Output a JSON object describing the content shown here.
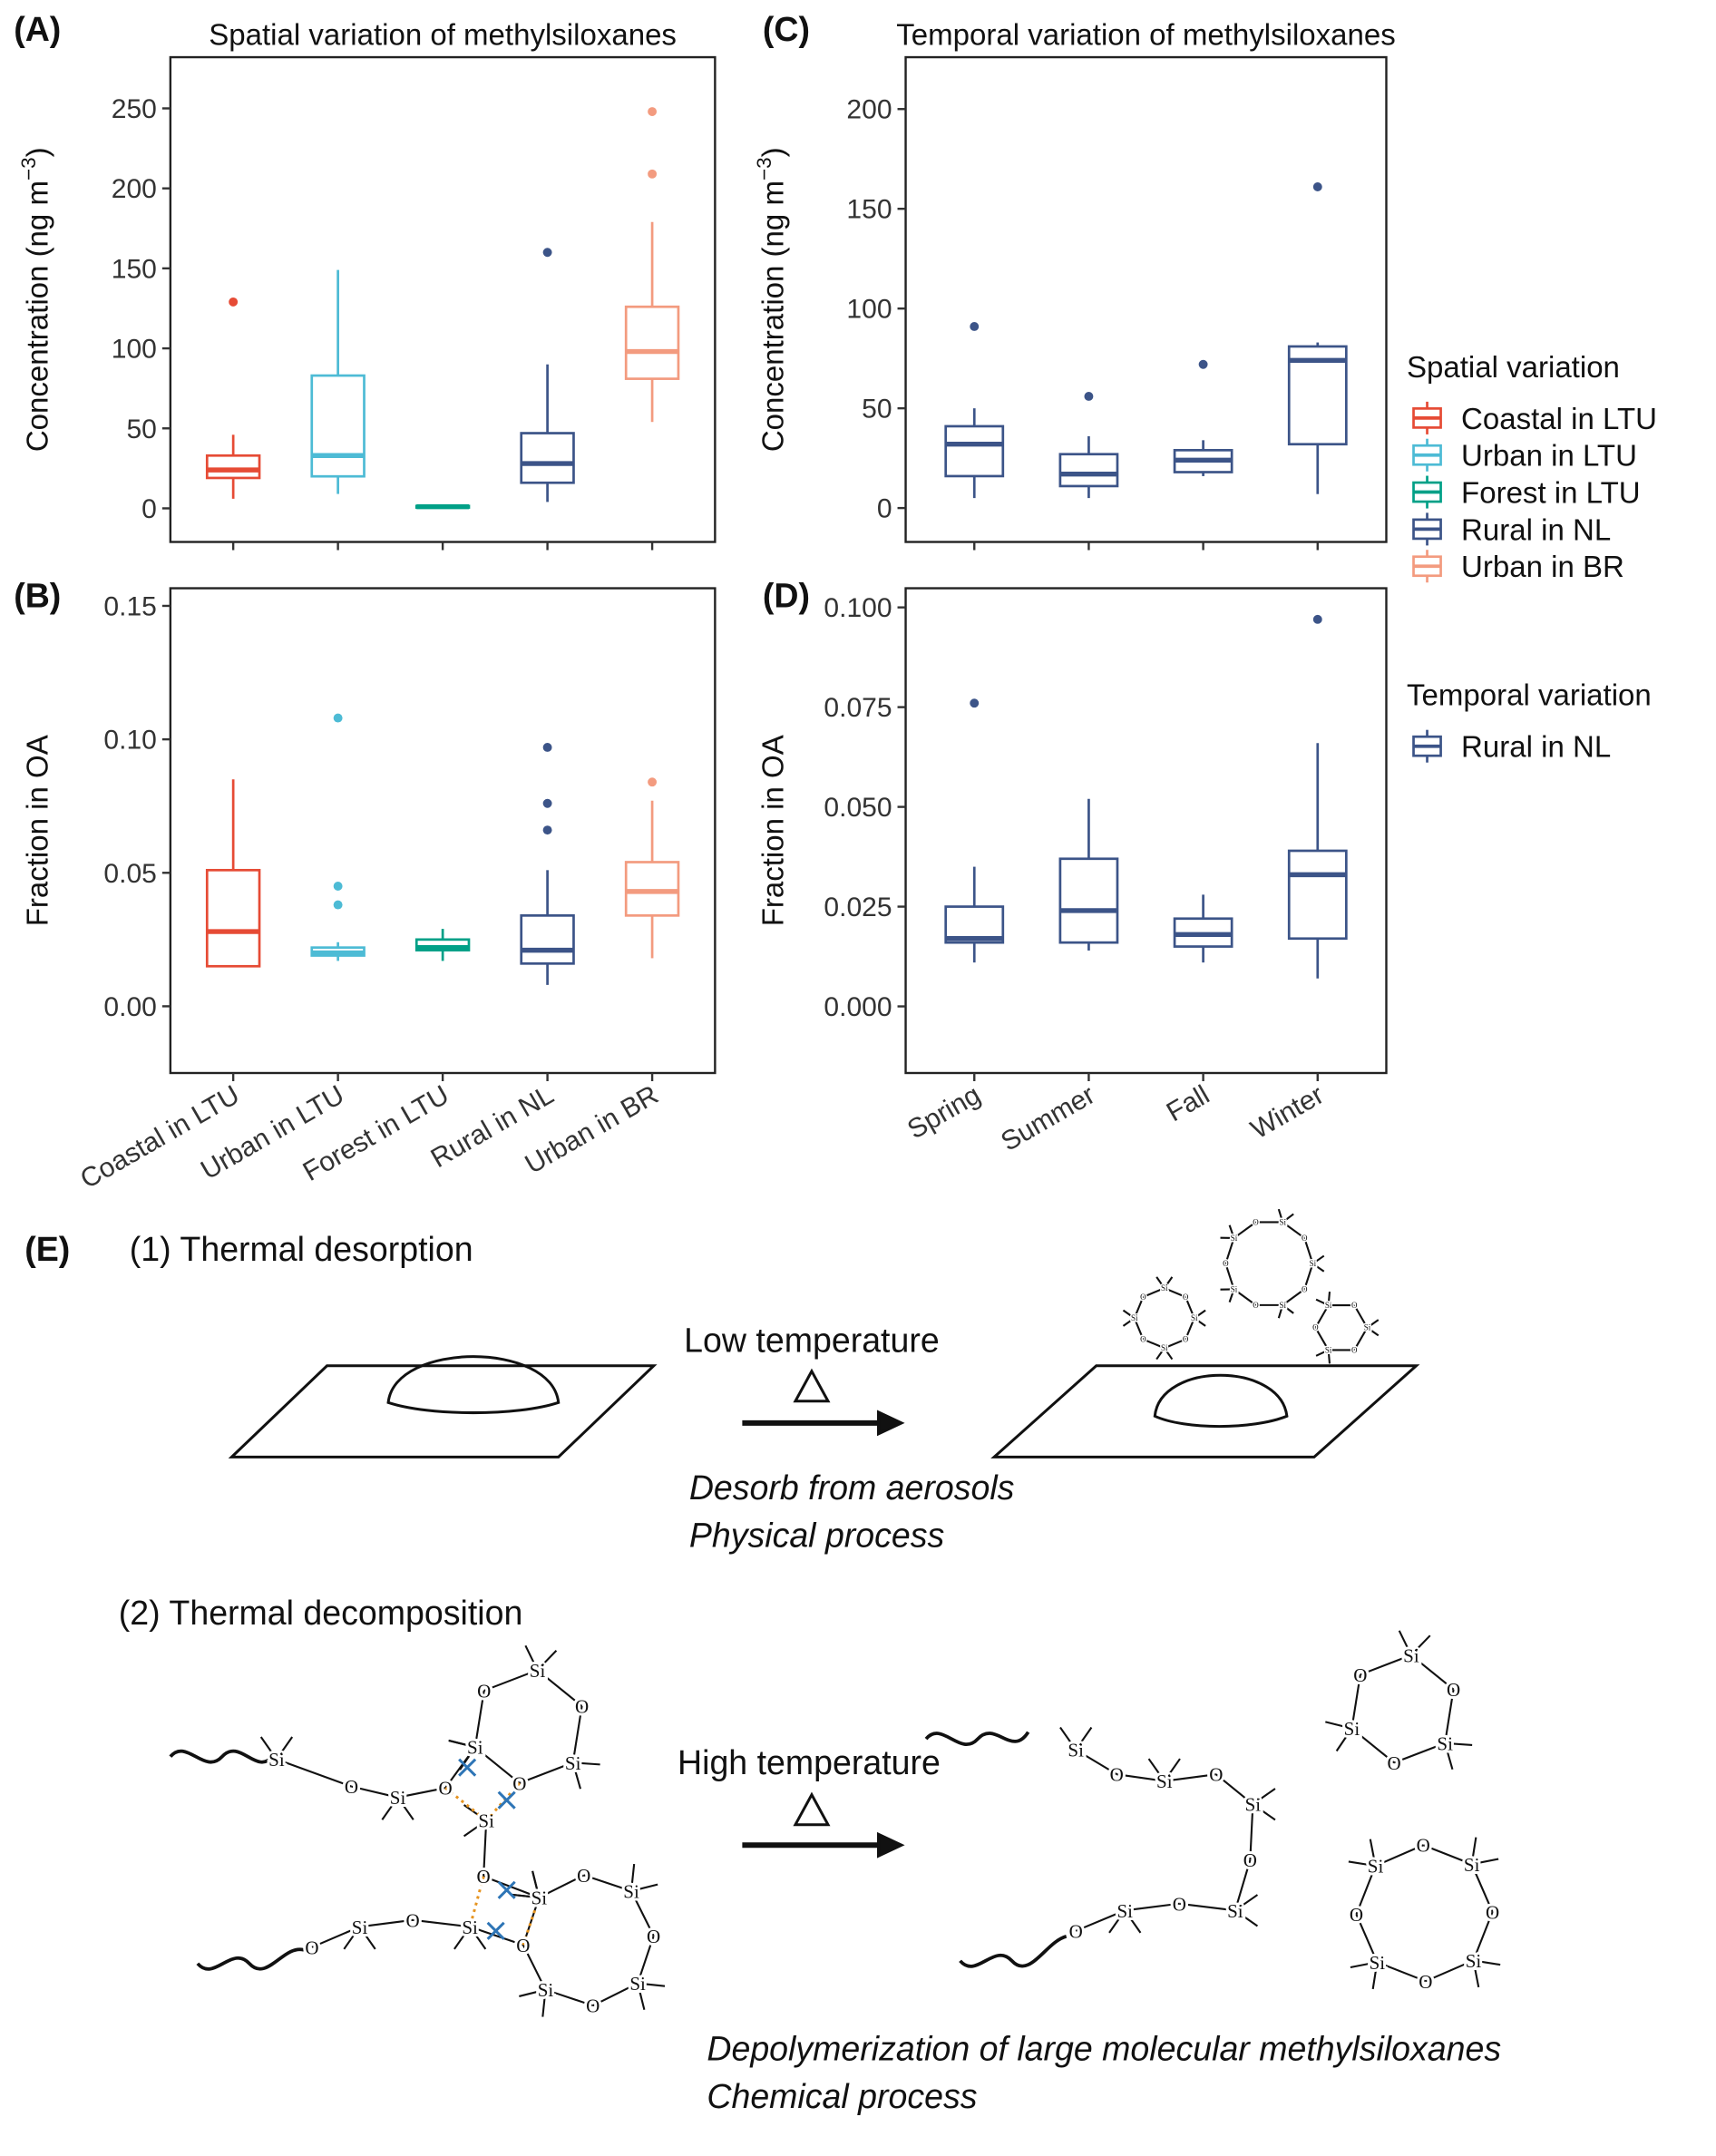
{
  "chart_data": [
    {
      "type": "box",
      "panel": "(A)",
      "title": "Spatial variation of methylsiloxanes",
      "ylabel": "Concentration (ng m",
      "ylabel_sup": "−3",
      "ylabel_end": ")",
      "ylim": [
        -21,
        282
      ],
      "yticks": [
        0,
        50,
        100,
        150,
        200,
        250
      ],
      "boxes": [
        {
          "color": "#E64B35",
          "low": 6,
          "q1": 19,
          "median": 24,
          "q3": 33,
          "high": 46,
          "outliers": [
            129
          ]
        },
        {
          "color": "#4DBBD5",
          "low": 9,
          "q1": 20,
          "median": 33,
          "q3": 83,
          "high": 149,
          "outliers": []
        },
        {
          "color": "#00A087",
          "low": 0,
          "q1": 0.5,
          "median": 1,
          "q3": 1.5,
          "high": 2,
          "outliers": []
        },
        {
          "color": "#3C5488",
          "low": 4,
          "q1": 16,
          "median": 28,
          "q3": 47,
          "high": 90,
          "outliers": [
            160
          ]
        },
        {
          "color": "#F39B7F",
          "low": 54,
          "q1": 81,
          "median": 98,
          "q3": 126,
          "high": 179,
          "outliers": [
            209,
            248
          ]
        }
      ],
      "legend": {
        "title": "Spatial variation",
        "entries": [
          {
            "name": "Coastal in LTU",
            "color": "#E64B35"
          },
          {
            "name": "Urban in LTU",
            "color": "#4DBBD5"
          },
          {
            "name": "Forest in LTU",
            "color": "#00A087"
          },
          {
            "name": "Rural in NL",
            "color": "#3C5488"
          },
          {
            "name": "Urban in BR",
            "color": "#F39B7F"
          }
        ]
      }
    },
    {
      "type": "box",
      "panel": "(B)",
      "ylabel": "Fraction in OA",
      "ylim": [
        -0.025,
        0.1566
      ],
      "yticks": [
        {
          "value": 0,
          "label": "0.00"
        },
        {
          "value": 0.05,
          "label": "0.05"
        },
        {
          "value": 0.1,
          "label": "0.10"
        },
        {
          "value": 0.15,
          "label": "0.15"
        }
      ],
      "categories": [
        "Coastal in LTU",
        "Urban in LTU",
        "Forest in LTU",
        "Rural in NL",
        "Urban in BR"
      ],
      "boxes": [
        {
          "color": "#E64B35",
          "low": 0.015,
          "q1": 0.015,
          "median": 0.028,
          "q3": 0.051,
          "high": 0.085,
          "outliers": []
        },
        {
          "color": "#4DBBD5",
          "low": 0.017,
          "q1": 0.019,
          "median": 0.02,
          "q3": 0.022,
          "high": 0.024,
          "outliers": [
            0.038,
            0.045,
            0.108
          ]
        },
        {
          "color": "#00A087",
          "low": 0.017,
          "q1": 0.021,
          "median": 0.022,
          "q3": 0.025,
          "high": 0.029,
          "outliers": []
        },
        {
          "color": "#3C5488",
          "low": 0.008,
          "q1": 0.016,
          "median": 0.021,
          "q3": 0.034,
          "high": 0.051,
          "outliers": [
            0.066,
            0.076,
            0.097
          ]
        },
        {
          "color": "#F39B7F",
          "low": 0.018,
          "q1": 0.034,
          "median": 0.043,
          "q3": 0.054,
          "high": 0.077,
          "outliers": [
            0.084
          ]
        }
      ]
    },
    {
      "type": "box",
      "panel": "(C)",
      "title": "Temporal variation of methylsiloxanes",
      "ylabel": "Concentration (ng m",
      "ylabel_sup": "−3",
      "ylabel_end": ")",
      "ylim": [
        -17,
        226
      ],
      "yticks": [
        0,
        50,
        100,
        150,
        200
      ],
      "boxes": [
        {
          "color": "#3C5488",
          "low": 5,
          "q1": 16,
          "median": 32,
          "q3": 41,
          "high": 50,
          "outliers": [
            91
          ]
        },
        {
          "color": "#3C5488",
          "low": 5,
          "q1": 11,
          "median": 17,
          "q3": 27,
          "high": 36,
          "outliers": [
            56
          ]
        },
        {
          "color": "#3C5488",
          "low": 16,
          "q1": 18,
          "median": 24,
          "q3": 29,
          "high": 34,
          "outliers": [
            72
          ]
        },
        {
          "color": "#3C5488",
          "low": 7,
          "q1": 32,
          "median": 74,
          "q3": 81,
          "high": 83,
          "outliers": [
            161
          ]
        }
      ],
      "legend": {
        "title": "Temporal variation",
        "entries": [
          {
            "name": "Rural in NL",
            "color": "#3C5488"
          }
        ]
      }
    },
    {
      "type": "box",
      "panel": "(D)",
      "ylabel": "Fraction in OA",
      "ylim": [
        -0.0167,
        0.1048
      ],
      "yticks": [
        {
          "value": 0,
          "label": "0.000"
        },
        {
          "value": 0.025,
          "label": "0.025"
        },
        {
          "value": 0.05,
          "label": "0.050"
        },
        {
          "value": 0.075,
          "label": "0.075"
        },
        {
          "value": 0.1,
          "label": "0.100"
        }
      ],
      "categories": [
        "Spring",
        "Summer",
        "Fall",
        "Winter"
      ],
      "boxes": [
        {
          "color": "#3C5488",
          "low": 0.011,
          "q1": 0.016,
          "median": 0.017,
          "q3": 0.025,
          "high": 0.035,
          "outliers": [
            0.076
          ]
        },
        {
          "color": "#3C5488",
          "low": 0.014,
          "q1": 0.016,
          "median": 0.024,
          "q3": 0.037,
          "high": 0.052,
          "outliers": []
        },
        {
          "color": "#3C5488",
          "low": 0.011,
          "q1": 0.015,
          "median": 0.018,
          "q3": 0.022,
          "high": 0.028,
          "outliers": []
        },
        {
          "color": "#3C5488",
          "low": 0.007,
          "q1": 0.017,
          "median": 0.033,
          "q3": 0.039,
          "high": 0.066,
          "outliers": [
            0.097
          ]
        }
      ]
    }
  ],
  "panel_e": {
    "label": "(E)",
    "step1": "(1) Thermal desorption",
    "cond1": "Low temperature",
    "note1": [
      "Desorb from aerosols",
      "Physical process"
    ],
    "step2": "(2) Thermal decomposition",
    "cond2": "High temperature",
    "note2": [
      "Depolymerization of large molecular methylsiloxanes",
      "Chemical process"
    ],
    "atoms": {
      "si": "Si",
      "o": "O"
    }
  }
}
